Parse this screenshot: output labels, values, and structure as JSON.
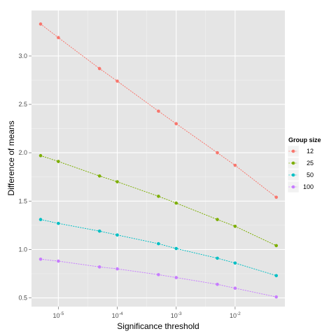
{
  "chart_data": {
    "type": "line",
    "xlabel": "Significance threshold",
    "ylabel": "Difference of means",
    "x_scale": "log10",
    "xlim": [
      3.5e-06,
      0.07
    ],
    "ylim": [
      0.41,
      3.47
    ],
    "grid": true,
    "legend_title": "Group size",
    "legend_position": "right",
    "x": [
      5e-06,
      1e-05,
      5e-05,
      0.0001,
      0.0005,
      0.001,
      0.005,
      0.01,
      0.05
    ],
    "x_ticks": [
      {
        "value": 1e-05,
        "base": "10",
        "exp": "-5"
      },
      {
        "value": 0.0001,
        "base": "10",
        "exp": "-4"
      },
      {
        "value": 0.001,
        "base": "10",
        "exp": "-3"
      },
      {
        "value": 0.01,
        "base": "10",
        "exp": "-2"
      }
    ],
    "y_ticks": [
      0.5,
      1.0,
      1.5,
      2.0,
      2.5,
      3.0
    ],
    "y_tick_labels": [
      "0.5",
      "1.0",
      "1.5",
      "2.0",
      "2.5",
      "3.0"
    ],
    "series": [
      {
        "name": "12",
        "color": "#F8766D",
        "values": [
          3.33,
          3.19,
          2.87,
          2.74,
          2.43,
          2.3,
          2.0,
          1.87,
          1.54
        ]
      },
      {
        "name": "25",
        "color": "#7CAE00",
        "values": [
          1.97,
          1.91,
          1.76,
          1.7,
          1.55,
          1.48,
          1.31,
          1.24,
          1.04
        ]
      },
      {
        "name": "50",
        "color": "#00BFC4",
        "values": [
          1.31,
          1.27,
          1.19,
          1.15,
          1.06,
          1.01,
          0.91,
          0.86,
          0.73
        ]
      },
      {
        "name": "100",
        "color": "#C77CFF",
        "values": [
          0.9,
          0.88,
          0.82,
          0.8,
          0.74,
          0.71,
          0.64,
          0.6,
          0.51
        ]
      }
    ]
  }
}
